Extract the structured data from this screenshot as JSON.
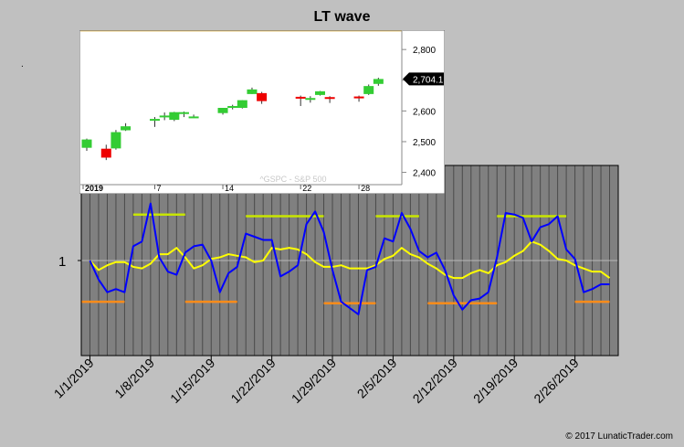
{
  "title": "LT wave",
  "copyright": "© 2017 LunaticTrader.com",
  "dot_mark": ".",
  "colors": {
    "background": "#c0c0c0",
    "plot_bg": "#808080",
    "blue_line": "#0000ff",
    "yellow_line": "#ffff00",
    "lime_bar": "#c8e600",
    "orange_bar": "#ff8c1a",
    "up_candle": "#33cc33",
    "down_candle": "#ee0000"
  },
  "chart_data": [
    {
      "type": "line",
      "title": "LT wave",
      "xlabel": "",
      "ylabel": "",
      "ylim": [
        0.4,
        1.6
      ],
      "xlim": [
        "12/31/2018",
        "3/3/2019"
      ],
      "x_tick_labels": [
        "1/1/2019",
        "1/8/2019",
        "1/15/2019",
        "1/22/2019",
        "1/29/2019",
        "2/5/2019",
        "2/12/2019",
        "2/19/2019",
        "2/26/2019"
      ],
      "y_tick_labels": [
        "1"
      ],
      "reference_line": 1,
      "series": [
        {
          "color": "blue",
          "x": [
            "1/1",
            "1/2",
            "1/3",
            "1/4",
            "1/5",
            "1/6",
            "1/7",
            "1/8",
            "1/9",
            "1/10",
            "1/11",
            "1/12",
            "1/13",
            "1/14",
            "1/15",
            "1/16",
            "1/17",
            "1/18",
            "1/19",
            "1/20",
            "1/21",
            "1/22",
            "1/23",
            "1/24",
            "1/25",
            "1/26",
            "1/27",
            "1/28",
            "1/29",
            "1/30",
            "1/31",
            "2/1",
            "2/2",
            "2/3",
            "2/4",
            "2/5",
            "2/6",
            "2/7",
            "2/8",
            "2/9",
            "2/10",
            "2/11",
            "2/12",
            "2/13",
            "2/14",
            "2/15",
            "2/16",
            "2/17",
            "2/18",
            "2/19",
            "2/20",
            "2/21",
            "2/22",
            "2/23",
            "2/24",
            "2/25",
            "2/26",
            "2/27",
            "2/28",
            "3/1",
            "3/2"
          ],
          "values": [
            1.0,
            0.88,
            0.8,
            0.82,
            0.8,
            1.09,
            1.12,
            1.36,
            1.02,
            0.93,
            0.91,
            1.05,
            1.09,
            1.1,
            1.0,
            0.8,
            0.92,
            0.96,
            1.17,
            1.15,
            1.13,
            1.13,
            0.9,
            0.93,
            0.97,
            1.23,
            1.31,
            1.18,
            0.94,
            0.74,
            0.7,
            0.66,
            0.94,
            0.96,
            1.14,
            1.12,
            1.3,
            1.2,
            1.06,
            1.02,
            1.05,
            0.94,
            0.78,
            0.69,
            0.75,
            0.76,
            0.8,
            1.02,
            1.3,
            1.29,
            1.27,
            1.12,
            1.21,
            1.23,
            1.28,
            1.07,
            1.01,
            0.8,
            0.82,
            0.85,
            0.85
          ]
        },
        {
          "color": "yellow",
          "x": [
            "1/1",
            "1/2",
            "1/3",
            "1/4",
            "1/5",
            "1/6",
            "1/7",
            "1/8",
            "1/9",
            "1/10",
            "1/11",
            "1/12",
            "1/13",
            "1/14",
            "1/15",
            "1/16",
            "1/17",
            "1/18",
            "1/19",
            "1/20",
            "1/21",
            "1/22",
            "1/23",
            "1/24",
            "1/25",
            "1/26",
            "1/27",
            "1/28",
            "1/29",
            "1/30",
            "1/31",
            "2/1",
            "2/2",
            "2/3",
            "2/4",
            "2/5",
            "2/6",
            "2/7",
            "2/8",
            "2/9",
            "2/10",
            "2/11",
            "2/12",
            "2/13",
            "2/14",
            "2/15",
            "2/16",
            "2/17",
            "2/18",
            "2/19",
            "2/20",
            "2/21",
            "2/22",
            "2/23",
            "2/24",
            "2/25",
            "2/26",
            "2/27",
            "2/28",
            "3/1",
            "3/2"
          ],
          "values": [
            1.0,
            0.94,
            0.97,
            0.99,
            0.99,
            0.96,
            0.95,
            0.98,
            1.04,
            1.04,
            1.08,
            1.02,
            0.95,
            0.97,
            1.01,
            1.02,
            1.04,
            1.03,
            1.02,
            0.99,
            1.0,
            1.08,
            1.07,
            1.08,
            1.07,
            1.04,
            0.99,
            0.96,
            0.96,
            0.97,
            0.95,
            0.95,
            0.95,
            0.97,
            1.01,
            1.03,
            1.08,
            1.04,
            1.02,
            0.98,
            0.95,
            0.91,
            0.89,
            0.89,
            0.92,
            0.94,
            0.92,
            0.97,
            0.99,
            1.03,
            1.06,
            1.12,
            1.1,
            1.06,
            1.01,
            1.0,
            0.97,
            0.95,
            0.93,
            0.93,
            0.89
          ]
        }
      ],
      "bars": [
        {
          "color": "lime",
          "level": 1.29,
          "from": "1/6",
          "to": "1/12"
        },
        {
          "color": "lime",
          "level": 1.28,
          "from": "1/19",
          "to": "1/28"
        },
        {
          "color": "lime",
          "level": 1.28,
          "from": "2/3",
          "to": "2/8"
        },
        {
          "color": "lime",
          "level": 1.28,
          "from": "2/17",
          "to": "2/25"
        },
        {
          "color": "orange",
          "level": 0.74,
          "from": "12/31",
          "to": "1/5"
        },
        {
          "color": "orange",
          "level": 0.74,
          "from": "1/12",
          "to": "1/18"
        },
        {
          "color": "orange",
          "level": 0.73,
          "from": "1/28",
          "to": "2/3"
        },
        {
          "color": "orange",
          "level": 0.73,
          "from": "2/9",
          "to": "2/17"
        },
        {
          "color": "orange",
          "level": 0.74,
          "from": "2/26",
          "to": "3/2"
        }
      ]
    },
    {
      "type": "candlestick",
      "watermark": "^GSPC - S&P 500",
      "ylim": [
        2360,
        2860
      ],
      "y_tick_labels": [
        "2,800",
        "2,700",
        "2,600",
        "2,500",
        "2,400"
      ],
      "y_ticks": [
        2800,
        2700,
        2600,
        2500,
        2400
      ],
      "last_price_label": "2,704.1",
      "last_price": 2704.1,
      "x_tick_labels": [
        "2019",
        "7",
        "14",
        "22",
        "28"
      ],
      "candles": [
        {
          "date": "12/31",
          "open": 2480,
          "high": 2510,
          "low": 2470,
          "close": 2507
        },
        {
          "date": "1/2",
          "open": 2477,
          "high": 2490,
          "low": 2440,
          "close": 2448
        },
        {
          "date": "1/3",
          "open": 2478,
          "high": 2538,
          "low": 2474,
          "close": 2531
        },
        {
          "date": "1/4",
          "open": 2537,
          "high": 2560,
          "low": 2535,
          "close": 2550
        },
        {
          "date": "1/7",
          "open": 2568,
          "high": 2580,
          "low": 2548,
          "close": 2574
        },
        {
          "date": "1/8",
          "open": 2581,
          "high": 2595,
          "low": 2570,
          "close": 2585
        },
        {
          "date": "1/9",
          "open": 2571,
          "high": 2597,
          "low": 2567,
          "close": 2596
        },
        {
          "date": "1/10",
          "open": 2591,
          "high": 2598,
          "low": 2580,
          "close": 2596
        },
        {
          "date": "1/11",
          "open": 2580,
          "high": 2588,
          "low": 2577,
          "close": 2582
        },
        {
          "date": "1/14",
          "open": 2593,
          "high": 2610,
          "low": 2588,
          "close": 2610
        },
        {
          "date": "1/15",
          "open": 2614,
          "high": 2620,
          "low": 2605,
          "close": 2616
        },
        {
          "date": "1/16",
          "open": 2610,
          "high": 2635,
          "low": 2608,
          "close": 2635
        },
        {
          "date": "1/17",
          "open": 2655,
          "high": 2676,
          "low": 2655,
          "close": 2670
        },
        {
          "date": "1/18",
          "open": 2658,
          "high": 2662,
          "low": 2623,
          "close": 2632
        },
        {
          "date": "1/22",
          "open": 2646,
          "high": 2650,
          "low": 2616,
          "close": 2640
        },
        {
          "date": "1/23",
          "open": 2636,
          "high": 2648,
          "low": 2627,
          "close": 2642
        },
        {
          "date": "1/24",
          "open": 2652,
          "high": 2665,
          "low": 2650,
          "close": 2664
        },
        {
          "date": "1/25",
          "open": 2645,
          "high": 2648,
          "low": 2626,
          "close": 2640
        },
        {
          "date": "1/28",
          "open": 2647,
          "high": 2650,
          "low": 2630,
          "close": 2641
        },
        {
          "date": "1/29",
          "open": 2655,
          "high": 2686,
          "low": 2652,
          "close": 2681
        },
        {
          "date": "1/30",
          "open": 2688,
          "high": 2708,
          "low": 2682,
          "close": 2704
        }
      ]
    }
  ]
}
